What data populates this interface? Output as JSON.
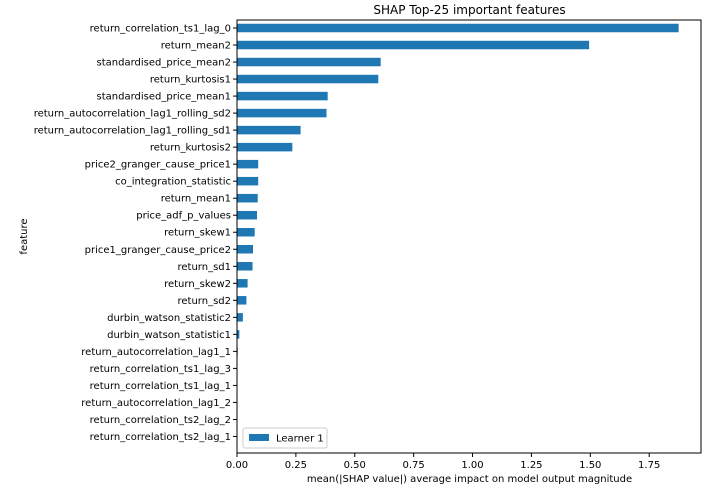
{
  "chart_data": {
    "type": "bar",
    "orientation": "horizontal",
    "title": "SHAP Top-25 important features",
    "xlabel": "mean(|SHAP value|) average impact on model output magnitude",
    "ylabel": "feature",
    "xlim": [
      0,
      1.97
    ],
    "xticks": [
      "0.00",
      "0.25",
      "0.50",
      "0.75",
      "1.00",
      "1.25",
      "1.50",
      "1.75"
    ],
    "xtick_values": [
      0,
      0.25,
      0.5,
      0.75,
      1.0,
      1.25,
      1.5,
      1.75
    ],
    "grid": false,
    "legend_position": "lower-left",
    "bar_color": "#1f77b4",
    "categories": [
      "return_correlation_ts1_lag_0",
      "return_mean2",
      "standardised_price_mean2",
      "return_kurtosis1",
      "standardised_price_mean1",
      "return_autocorrelation_lag1_rolling_sd2",
      "return_autocorrelation_lag1_rolling_sd1",
      "return_kurtosis2",
      "price2_granger_cause_price1",
      "co_integration_statistic",
      "return_mean1",
      "price_adf_p_values",
      "return_skew1",
      "price1_granger_cause_price2",
      "return_sd1",
      "return_skew2",
      "return_sd2",
      "durbin_watson_statistic2",
      "durbin_watson_statistic1",
      "return_autocorrelation_lag1_1",
      "return_correlation_ts1_lag_3",
      "return_correlation_ts1_lag_1",
      "return_autocorrelation_lag1_2",
      "return_correlation_ts2_lag_2",
      "return_correlation_ts2_lag_1"
    ],
    "series": [
      {
        "name": "Learner 1",
        "values": [
          1.875,
          1.495,
          0.61,
          0.6,
          0.385,
          0.38,
          0.27,
          0.235,
          0.09,
          0.09,
          0.088,
          0.085,
          0.075,
          0.068,
          0.066,
          0.045,
          0.04,
          0.025,
          0.01,
          0.003,
          0.002,
          0.002,
          0.002,
          0.002,
          0.002
        ]
      }
    ]
  }
}
